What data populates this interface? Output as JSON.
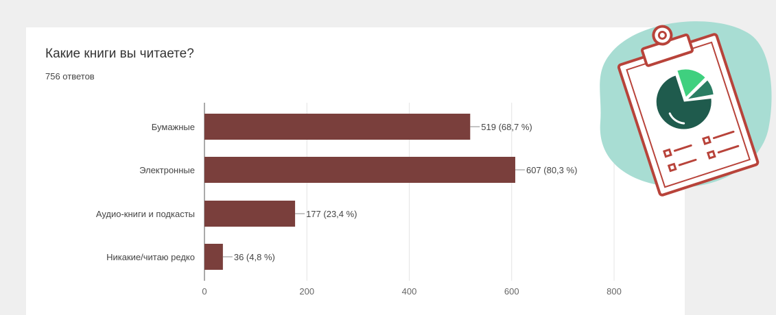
{
  "colors": {
    "bar": "#7a3f3c",
    "page_background": "#efefef",
    "card": "#ffffff",
    "illustration_outline": "#b8433a",
    "illustration_blob": "#a8ddd3",
    "pie_dark": "#1f5b4d",
    "pie_light": "#3fd07f"
  },
  "icons": [
    "clipboard-pie-chart-illustration"
  ],
  "chart_data": {
    "type": "bar",
    "orientation": "horizontal",
    "title": "Какие книги вы читаете?",
    "subtitle": "756 ответов",
    "categories": [
      "Бумажные",
      "Электронные",
      "Аудио-книги и подкасты",
      "Никакие/читаю редко"
    ],
    "values": [
      519,
      607,
      177,
      36
    ],
    "data_labels": [
      "519 (68,7 %)",
      "607 (80,3 %)",
      "177 (23,4 %)",
      "36 (4,8 %)"
    ],
    "xlim": [
      0,
      800
    ],
    "x_ticks": [
      "0",
      "200",
      "400",
      "600",
      "800"
    ],
    "grid": true
  }
}
